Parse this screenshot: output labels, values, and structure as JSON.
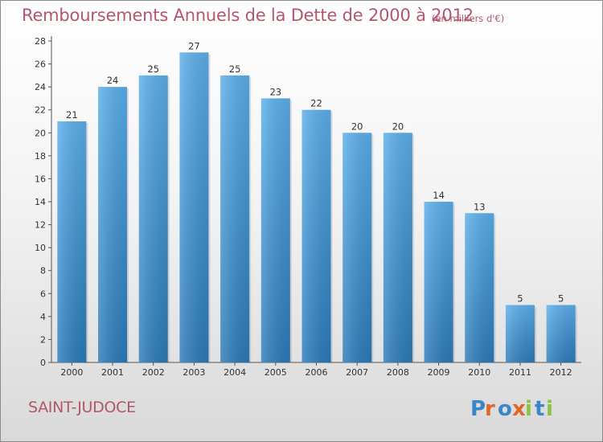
{
  "chart_data": {
    "type": "bar",
    "title": "Remboursements Annuels de la Dette de 2000 à 2012",
    "unit_note": "(en milliers d'€)",
    "categories": [
      "2000",
      "2001",
      "2002",
      "2003",
      "2004",
      "2005",
      "2006",
      "2007",
      "2008",
      "2009",
      "2010",
      "2011",
      "2012"
    ],
    "values": [
      21,
      24,
      25,
      27,
      25,
      23,
      22,
      20,
      20,
      14,
      13,
      5,
      5
    ],
    "ylim": [
      0,
      28
    ],
    "yticks": [
      0,
      2,
      4,
      6,
      8,
      10,
      12,
      14,
      16,
      18,
      20,
      22,
      24,
      26,
      28
    ],
    "grid": false,
    "bar_color_top": "#5aaeea",
    "bar_color_bottom": "#2a7ab9",
    "data_labels": true
  },
  "place_name": "SAINT-JUDOCE",
  "logo": {
    "text": "Proxiti",
    "letters": [
      "P",
      "r",
      "o",
      "x",
      "i",
      "t",
      "i"
    ],
    "colors": [
      "#3a86c8",
      "#e2662a",
      "#3a86c8",
      "#e2662a",
      "#8ac43f",
      "#3a86c8",
      "#8ac43f"
    ]
  }
}
